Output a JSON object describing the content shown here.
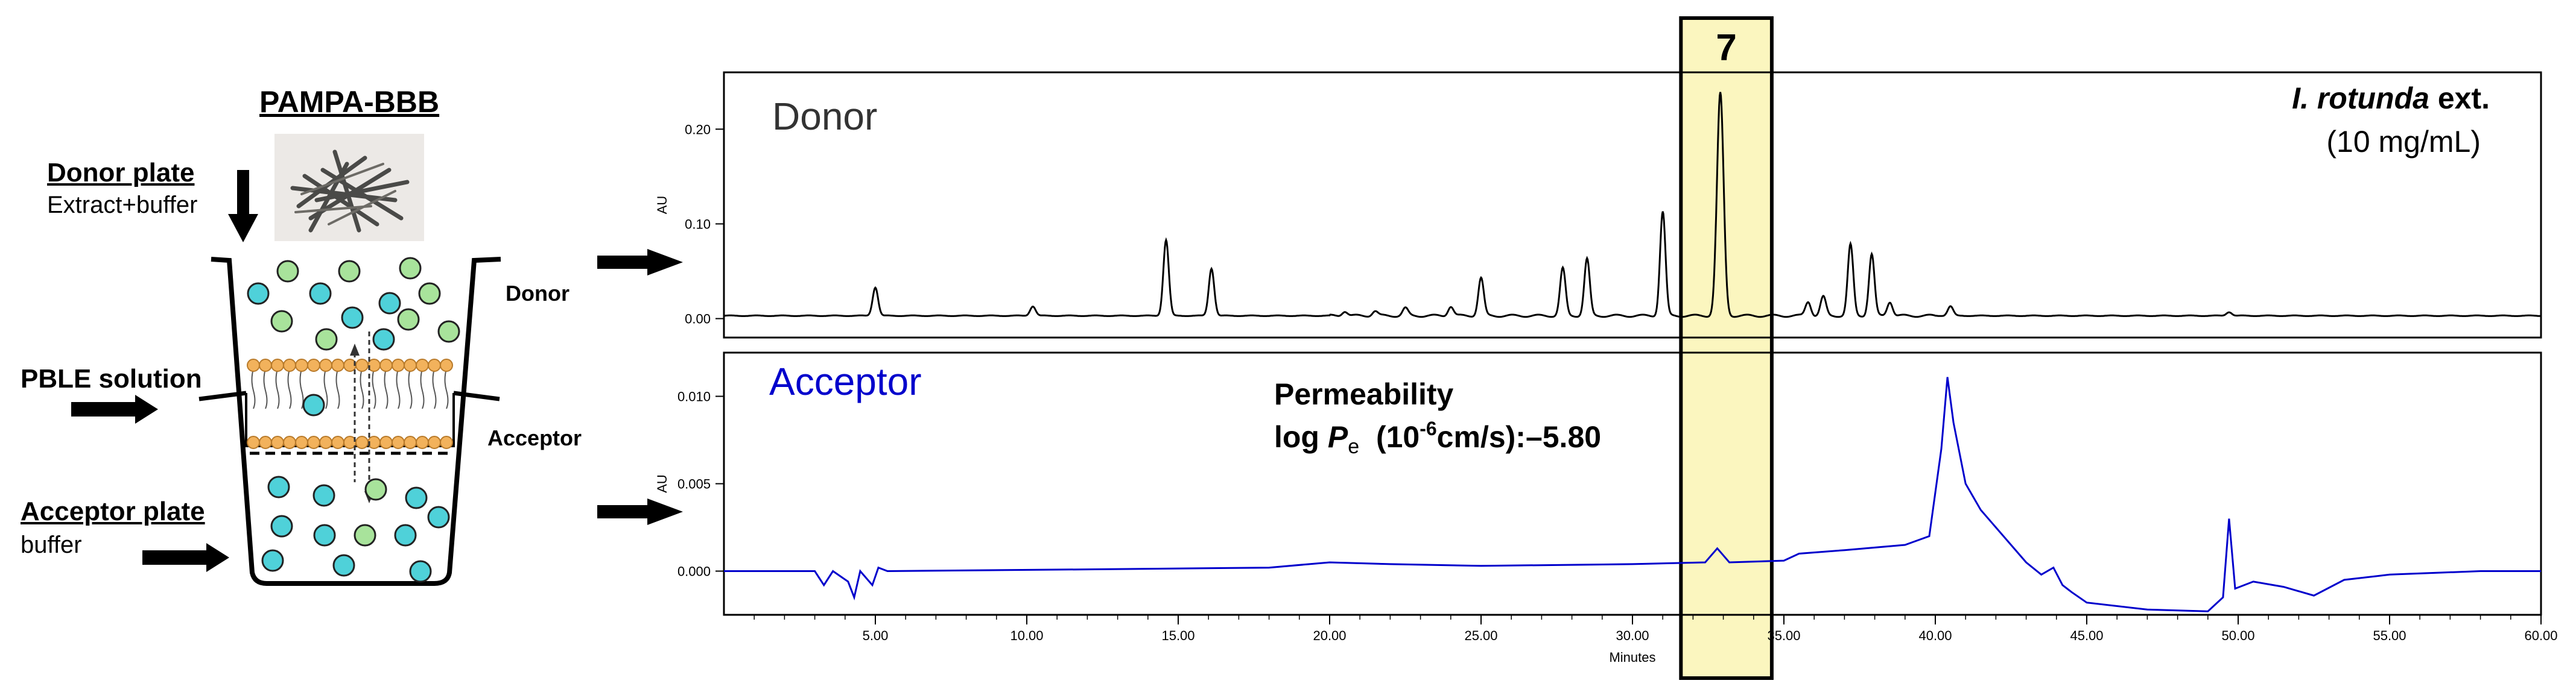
{
  "schematic": {
    "title": "PAMPA-BBB",
    "donor_plate_label": "Donor plate",
    "donor_plate_content": "Extract+buffer",
    "membrane_label": "PBLE solution",
    "acceptor_plate_label": "Acceptor plate",
    "acceptor_plate_content": "buffer",
    "donor_side_label": "Donor",
    "acceptor_side_label": "Acceptor",
    "sample_photo_icon": "herb-sample-photo",
    "colors": {
      "teal": "#4fd1d9",
      "green": "#a8e39b",
      "lipid": "#f2b25c"
    }
  },
  "highlight": {
    "peak_label": "7",
    "fill": "#fbf6bf",
    "x_range": [
      31.6,
      34.6
    ]
  },
  "permeability": {
    "heading": "Permeability",
    "log_text": "log ",
    "symbol": "P",
    "subscript": "e",
    "unit_open": "  (10",
    "exponent": "-6",
    "unit_close": "cm/s):",
    "value": "–5.80"
  },
  "chart_data": [
    {
      "type": "line",
      "name": "donor",
      "label": "Donor",
      "annotation_species": "I. rotunda",
      "annotation_suffix": " ext.",
      "annotation_conc": "(10 mg/mL)",
      "ylabel": "AU",
      "xlim": [
        0,
        60
      ],
      "ylim": [
        -0.02,
        0.26
      ],
      "yticks": [
        0.0,
        0.1,
        0.2
      ],
      "ytick_labels": [
        "0.00",
        "0.10",
        "0.20"
      ],
      "color": "#000000",
      "baseline": 0.003,
      "peaks": [
        {
          "x": 5.0,
          "y": 0.03
        },
        {
          "x": 10.2,
          "y": 0.01
        },
        {
          "x": 14.6,
          "y": 0.08
        },
        {
          "x": 16.1,
          "y": 0.05
        },
        {
          "x": 20.5,
          "y": 0.005
        },
        {
          "x": 21.5,
          "y": 0.005
        },
        {
          "x": 22.5,
          "y": 0.008
        },
        {
          "x": 24.0,
          "y": 0.01
        },
        {
          "x": 25.0,
          "y": 0.04
        },
        {
          "x": 27.7,
          "y": 0.05
        },
        {
          "x": 28.5,
          "y": 0.06
        },
        {
          "x": 31.0,
          "y": 0.11
        },
        {
          "x": 32.9,
          "y": 0.235
        },
        {
          "x": 35.8,
          "y": 0.015
        },
        {
          "x": 36.3,
          "y": 0.02
        },
        {
          "x": 37.2,
          "y": 0.075
        },
        {
          "x": 37.9,
          "y": 0.065
        },
        {
          "x": 38.5,
          "y": 0.015
        },
        {
          "x": 40.5,
          "y": 0.01
        },
        {
          "x": 49.7,
          "y": 0.004
        }
      ]
    },
    {
      "type": "line",
      "name": "acceptor",
      "label": "Acceptor",
      "ylabel": "AU",
      "xlabel": "Minutes",
      "xlim": [
        0,
        60
      ],
      "ylim": [
        -0.0025,
        0.0125
      ],
      "yticks": [
        0.0,
        0.005,
        0.01
      ],
      "ytick_labels": [
        "0.000",
        "0.005",
        "0.010"
      ],
      "xticks": [
        5,
        10,
        15,
        20,
        25,
        30,
        35,
        40,
        45,
        50,
        55,
        60
      ],
      "xtick_labels": [
        "5.00",
        "10.00",
        "15.00",
        "20.00",
        "25.00",
        "30.00",
        "35.00",
        "40.00",
        "45.00",
        "50.00",
        "55.00",
        "60.00"
      ],
      "color": "#0000cc",
      "points": [
        [
          0,
          0.0
        ],
        [
          3.0,
          0.0
        ],
        [
          3.3,
          -0.0008
        ],
        [
          3.6,
          0.0
        ],
        [
          4.1,
          -0.0006
        ],
        [
          4.3,
          -0.0015
        ],
        [
          4.5,
          0.0
        ],
        [
          4.9,
          -0.0008
        ],
        [
          5.1,
          0.0002
        ],
        [
          5.4,
          0.0
        ],
        [
          12.0,
          0.0001
        ],
        [
          18.0,
          0.0002
        ],
        [
          20.0,
          0.0005
        ],
        [
          22.0,
          0.0004
        ],
        [
          25.0,
          0.0003
        ],
        [
          30.0,
          0.0004
        ],
        [
          32.4,
          0.0005
        ],
        [
          32.8,
          0.0013
        ],
        [
          33.2,
          0.0005
        ],
        [
          35.0,
          0.0006
        ],
        [
          35.5,
          0.001
        ],
        [
          37.0,
          0.0012
        ],
        [
          39.0,
          0.0015
        ],
        [
          39.8,
          0.002
        ],
        [
          40.2,
          0.007
        ],
        [
          40.4,
          0.0111
        ],
        [
          40.6,
          0.0085
        ],
        [
          41.0,
          0.005
        ],
        [
          41.5,
          0.0035
        ],
        [
          42.0,
          0.0025
        ],
        [
          42.5,
          0.0015
        ],
        [
          43.0,
          0.0005
        ],
        [
          43.5,
          -0.0002
        ],
        [
          43.9,
          0.0002
        ],
        [
          44.2,
          -0.0008
        ],
        [
          44.5,
          -0.0012
        ],
        [
          45.0,
          -0.0018
        ],
        [
          47.0,
          -0.0022
        ],
        [
          49.0,
          -0.0023
        ],
        [
          49.5,
          -0.0015
        ],
        [
          49.7,
          0.003
        ],
        [
          49.9,
          -0.001
        ],
        [
          50.5,
          -0.0006
        ],
        [
          51.5,
          -0.0009
        ],
        [
          52.5,
          -0.0014
        ],
        [
          53.5,
          -0.0005
        ],
        [
          55.0,
          -0.0002
        ],
        [
          58.0,
          0.0
        ],
        [
          60.0,
          0.0
        ]
      ]
    }
  ]
}
